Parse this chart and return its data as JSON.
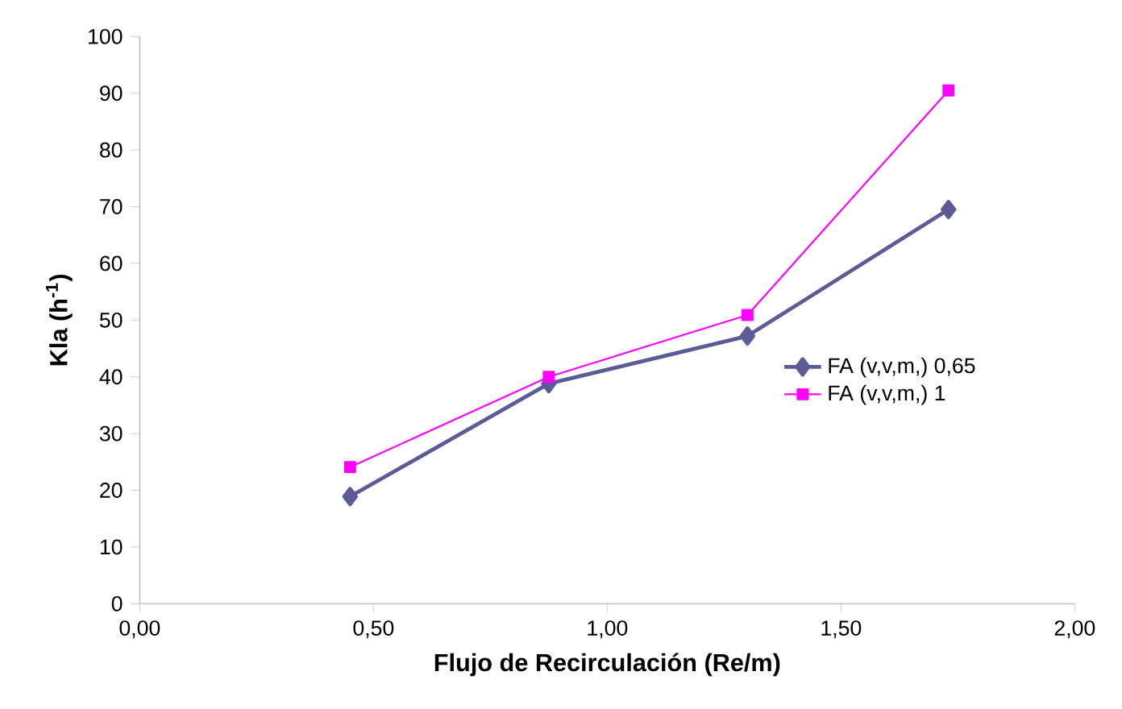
{
  "chart_data": {
    "type": "line",
    "xlabel": "Flujo de Recirculación (Re/m)",
    "ylabel": "Kla (h$^{-1}$)",
    "xlim": [
      0,
      2
    ],
    "ylim": [
      0,
      100
    ],
    "xticks": [
      {
        "value": 0,
        "label": "0,00"
      },
      {
        "value": 0.5,
        "label": "0,50"
      },
      {
        "value": 1,
        "label": "1,00"
      },
      {
        "value": 1.5,
        "label": "1,50"
      },
      {
        "value": 2,
        "label": "2,00"
      }
    ],
    "yticks": [
      0,
      10,
      20,
      30,
      40,
      50,
      60,
      70,
      80,
      90,
      100
    ],
    "x": [
      0.45,
      0.875,
      1.3,
      1.73
    ],
    "series": [
      {
        "name": "FA (v,v,m,)   0,65",
        "color": "#5b5b96",
        "marker": "diamond",
        "values": [
          18.9,
          38.8,
          47.2,
          69.5
        ]
      },
      {
        "name": "FA (v,v,m,)  1",
        "color": "#ff00ff",
        "marker": "square",
        "values": [
          24.1,
          40.0,
          50.9,
          90.5
        ]
      }
    ],
    "legend": "right",
    "grid": false
  }
}
